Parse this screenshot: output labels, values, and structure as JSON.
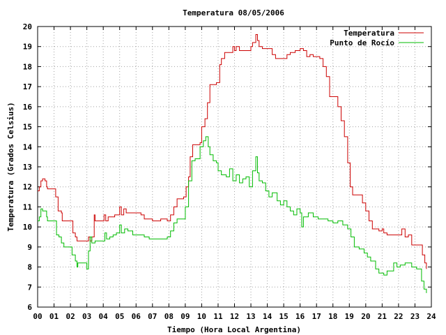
{
  "chart_data": {
    "type": "line",
    "title": "Temperatura 08/05/2006",
    "xlabel": "Tiempo (Hora Local Argentina)",
    "ylabel": "Temperatura (Grados Celsius)",
    "xlim": [
      0,
      24
    ],
    "ylim": [
      6,
      20
    ],
    "x_ticks": [
      "00",
      "01",
      "02",
      "03",
      "04",
      "05",
      "06",
      "07",
      "08",
      "09",
      "10",
      "11",
      "12",
      "13",
      "14",
      "15",
      "16",
      "17",
      "18",
      "19",
      "20",
      "21",
      "22",
      "23",
      "24"
    ],
    "y_ticks": [
      6,
      7,
      8,
      9,
      10,
      11,
      12,
      13,
      14,
      15,
      16,
      17,
      18,
      19,
      20
    ],
    "grid": true,
    "legend_position": "top-right",
    "series": [
      {
        "name": "Temperatura",
        "color": "#cc0000",
        "points": [
          [
            0.0,
            11.8
          ],
          [
            0.1,
            12.0
          ],
          [
            0.2,
            12.3
          ],
          [
            0.3,
            12.4
          ],
          [
            0.45,
            12.3
          ],
          [
            0.55,
            12.0
          ],
          [
            0.6,
            11.9
          ],
          [
            1.0,
            11.9
          ],
          [
            1.1,
            11.5
          ],
          [
            1.25,
            10.8
          ],
          [
            1.45,
            10.7
          ],
          [
            1.5,
            10.3
          ],
          [
            2.0,
            10.3
          ],
          [
            2.15,
            9.7
          ],
          [
            2.3,
            9.5
          ],
          [
            2.4,
            9.3
          ],
          [
            3.0,
            9.3
          ],
          [
            3.1,
            9.5
          ],
          [
            3.2,
            9.3
          ],
          [
            3.3,
            9.5
          ],
          [
            3.45,
            10.6
          ],
          [
            3.5,
            10.3
          ],
          [
            3.9,
            10.3
          ],
          [
            4.05,
            10.6
          ],
          [
            4.15,
            10.3
          ],
          [
            4.3,
            10.5
          ],
          [
            4.5,
            10.5
          ],
          [
            4.7,
            10.6
          ],
          [
            4.9,
            10.6
          ],
          [
            5.0,
            11.0
          ],
          [
            5.1,
            10.6
          ],
          [
            5.25,
            10.9
          ],
          [
            5.4,
            10.7
          ],
          [
            6.0,
            10.7
          ],
          [
            6.3,
            10.6
          ],
          [
            6.5,
            10.4
          ],
          [
            6.8,
            10.4
          ],
          [
            7.0,
            10.3
          ],
          [
            7.5,
            10.4
          ],
          [
            7.9,
            10.3
          ],
          [
            8.1,
            10.6
          ],
          [
            8.3,
            11.0
          ],
          [
            8.5,
            11.4
          ],
          [
            8.9,
            11.5
          ],
          [
            9.05,
            12.0
          ],
          [
            9.2,
            12.5
          ],
          [
            9.3,
            13.5
          ],
          [
            9.45,
            14.1
          ],
          [
            9.9,
            14.2
          ],
          [
            10.0,
            15.0
          ],
          [
            10.2,
            15.4
          ],
          [
            10.35,
            16.2
          ],
          [
            10.5,
            17.1
          ],
          [
            10.9,
            17.2
          ],
          [
            11.1,
            18.1
          ],
          [
            11.2,
            18.4
          ],
          [
            11.4,
            18.7
          ],
          [
            11.8,
            18.7
          ],
          [
            11.9,
            19.0
          ],
          [
            12.0,
            18.8
          ],
          [
            12.1,
            19.0
          ],
          [
            12.3,
            18.8
          ],
          [
            12.8,
            18.8
          ],
          [
            13.0,
            19.0
          ],
          [
            13.1,
            19.2
          ],
          [
            13.3,
            19.6
          ],
          [
            13.4,
            19.3
          ],
          [
            13.5,
            19.0
          ],
          [
            13.7,
            18.9
          ],
          [
            14.1,
            18.9
          ],
          [
            14.3,
            18.6
          ],
          [
            14.5,
            18.4
          ],
          [
            14.7,
            18.4
          ],
          [
            15.0,
            18.4
          ],
          [
            15.2,
            18.6
          ],
          [
            15.4,
            18.7
          ],
          [
            15.7,
            18.8
          ],
          [
            16.0,
            18.9
          ],
          [
            16.2,
            18.8
          ],
          [
            16.4,
            18.5
          ],
          [
            16.6,
            18.6
          ],
          [
            16.8,
            18.5
          ],
          [
            17.2,
            18.4
          ],
          [
            17.4,
            18.0
          ],
          [
            17.6,
            17.5
          ],
          [
            17.8,
            16.5
          ],
          [
            18.1,
            16.5
          ],
          [
            18.3,
            16.0
          ],
          [
            18.5,
            15.3
          ],
          [
            18.7,
            14.5
          ],
          [
            18.9,
            13.2
          ],
          [
            19.05,
            12.0
          ],
          [
            19.2,
            11.6
          ],
          [
            19.6,
            11.6
          ],
          [
            19.8,
            11.2
          ],
          [
            20.0,
            10.8
          ],
          [
            20.2,
            10.3
          ],
          [
            20.4,
            9.9
          ],
          [
            20.8,
            9.8
          ],
          [
            21.0,
            9.9
          ],
          [
            21.1,
            9.7
          ],
          [
            21.3,
            9.6
          ],
          [
            21.7,
            9.6
          ],
          [
            22.1,
            9.6
          ],
          [
            22.2,
            9.9
          ],
          [
            22.4,
            9.5
          ],
          [
            22.6,
            9.6
          ],
          [
            22.8,
            9.1
          ],
          [
            23.3,
            9.1
          ],
          [
            23.45,
            8.6
          ],
          [
            23.6,
            8.2
          ],
          [
            23.7,
            7.9
          ]
        ]
      },
      {
        "name": "Punto de Rocío",
        "color": "#00bb00",
        "points": [
          [
            0.0,
            10.3
          ],
          [
            0.1,
            10.5
          ],
          [
            0.2,
            10.9
          ],
          [
            0.3,
            10.8
          ],
          [
            0.45,
            10.8
          ],
          [
            0.55,
            10.5
          ],
          [
            0.6,
            10.3
          ],
          [
            1.0,
            10.3
          ],
          [
            1.15,
            9.6
          ],
          [
            1.3,
            9.5
          ],
          [
            1.45,
            9.2
          ],
          [
            1.6,
            9.0
          ],
          [
            2.0,
            9.0
          ],
          [
            2.1,
            8.6
          ],
          [
            2.3,
            8.3
          ],
          [
            2.4,
            8.0
          ],
          [
            2.45,
            8.2
          ],
          [
            2.9,
            8.2
          ],
          [
            3.0,
            7.9
          ],
          [
            3.1,
            8.8
          ],
          [
            3.2,
            9.5
          ],
          [
            3.3,
            9.2
          ],
          [
            3.5,
            9.3
          ],
          [
            3.9,
            9.3
          ],
          [
            4.1,
            9.7
          ],
          [
            4.2,
            9.4
          ],
          [
            4.4,
            9.5
          ],
          [
            4.6,
            9.6
          ],
          [
            4.8,
            9.7
          ],
          [
            5.0,
            10.1
          ],
          [
            5.1,
            9.7
          ],
          [
            5.3,
            9.9
          ],
          [
            5.5,
            9.8
          ],
          [
            5.8,
            9.6
          ],
          [
            6.1,
            9.6
          ],
          [
            6.3,
            9.6
          ],
          [
            6.5,
            9.5
          ],
          [
            6.8,
            9.4
          ],
          [
            7.0,
            9.4
          ],
          [
            7.3,
            9.4
          ],
          [
            7.6,
            9.4
          ],
          [
            7.9,
            9.5
          ],
          [
            8.1,
            9.8
          ],
          [
            8.3,
            10.2
          ],
          [
            8.5,
            10.4
          ],
          [
            8.8,
            10.4
          ],
          [
            9.0,
            11.0
          ],
          [
            9.2,
            12.3
          ],
          [
            9.4,
            13.3
          ],
          [
            9.6,
            13.4
          ],
          [
            9.8,
            13.4
          ],
          [
            9.9,
            14.0
          ],
          [
            10.1,
            14.3
          ],
          [
            10.25,
            14.5
          ],
          [
            10.4,
            14.0
          ],
          [
            10.5,
            13.6
          ],
          [
            10.7,
            13.3
          ],
          [
            10.9,
            13.2
          ],
          [
            11.0,
            12.8
          ],
          [
            11.2,
            12.6
          ],
          [
            11.5,
            12.5
          ],
          [
            11.7,
            12.9
          ],
          [
            11.9,
            12.3
          ],
          [
            12.1,
            12.6
          ],
          [
            12.3,
            12.2
          ],
          [
            12.5,
            12.4
          ],
          [
            12.7,
            12.5
          ],
          [
            12.9,
            12.0
          ],
          [
            13.1,
            12.8
          ],
          [
            13.3,
            13.5
          ],
          [
            13.4,
            12.7
          ],
          [
            13.5,
            12.3
          ],
          [
            13.7,
            12.2
          ],
          [
            13.9,
            11.8
          ],
          [
            14.1,
            11.5
          ],
          [
            14.3,
            11.7
          ],
          [
            14.6,
            11.3
          ],
          [
            14.8,
            11.1
          ],
          [
            15.0,
            11.3
          ],
          [
            15.2,
            11.0
          ],
          [
            15.4,
            10.8
          ],
          [
            15.6,
            10.6
          ],
          [
            15.8,
            10.9
          ],
          [
            16.0,
            10.7
          ],
          [
            16.1,
            10.0
          ],
          [
            16.2,
            10.5
          ],
          [
            16.5,
            10.7
          ],
          [
            16.8,
            10.5
          ],
          [
            17.1,
            10.4
          ],
          [
            17.4,
            10.4
          ],
          [
            17.7,
            10.3
          ],
          [
            18.0,
            10.2
          ],
          [
            18.3,
            10.3
          ],
          [
            18.6,
            10.1
          ],
          [
            18.9,
            9.9
          ],
          [
            19.1,
            9.5
          ],
          [
            19.3,
            9.0
          ],
          [
            19.6,
            8.9
          ],
          [
            19.9,
            8.7
          ],
          [
            20.1,
            8.5
          ],
          [
            20.3,
            8.3
          ],
          [
            20.6,
            7.9
          ],
          [
            20.8,
            7.7
          ],
          [
            21.1,
            7.6
          ],
          [
            21.3,
            7.8
          ],
          [
            21.5,
            7.8
          ],
          [
            21.7,
            8.2
          ],
          [
            21.9,
            8.0
          ],
          [
            22.1,
            8.1
          ],
          [
            22.4,
            8.2
          ],
          [
            22.8,
            8.0
          ],
          [
            23.1,
            7.9
          ],
          [
            23.3,
            7.9
          ],
          [
            23.4,
            7.3
          ],
          [
            23.55,
            6.9
          ],
          [
            23.7,
            6.7
          ]
        ]
      }
    ]
  }
}
